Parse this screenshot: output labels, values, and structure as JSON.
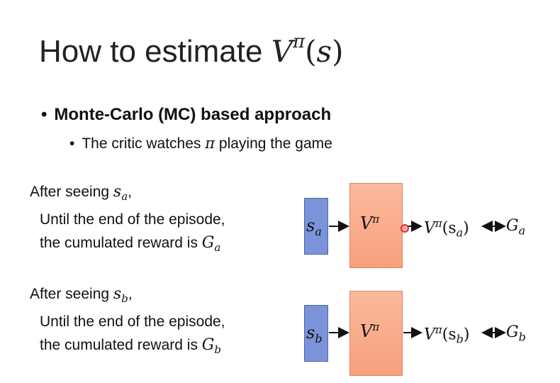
{
  "title": {
    "text": "How to estimate ",
    "v": "V",
    "pi": "π",
    "arg": "(s)"
  },
  "bullets": {
    "level1": "Monte-Carlo (MC) based approach",
    "level2_pre": "The critic watches ",
    "level2_pi": "π",
    "level2_post": " playing the game"
  },
  "example_a": {
    "seeing": "After seeing ",
    "state": "s",
    "sub": "a",
    "comma": ",",
    "line1": "Until the end of the episode,",
    "line2": "the cumulated reward is ",
    "reward": "G",
    "reward_sub": "a"
  },
  "example_b": {
    "seeing": "After seeing ",
    "state": "s",
    "sub": "b",
    "comma": ",",
    "line1": "Until the end of the episode,",
    "line2": "the cumulated reward is ",
    "reward": "G",
    "reward_sub": "b"
  },
  "diagram": {
    "v_label": "V",
    "pi": "π",
    "state_a": "s",
    "state_a_sub": "a",
    "state_b": "s",
    "state_b_sub": "b",
    "out_a": "V",
    "out_a_arg": "(s",
    "out_a_sub": "a",
    "out_a_close": ")",
    "out_b": "V",
    "out_b_arg": "(s",
    "out_b_sub": "b",
    "out_b_close": ")",
    "g_a": "G",
    "g_a_sub": "a",
    "g_b": "G",
    "g_b_sub": "b"
  },
  "colors": {
    "state_box": "#7b93d8",
    "v_box": "#f9a98a",
    "cursor_dot": "#e03030"
  }
}
